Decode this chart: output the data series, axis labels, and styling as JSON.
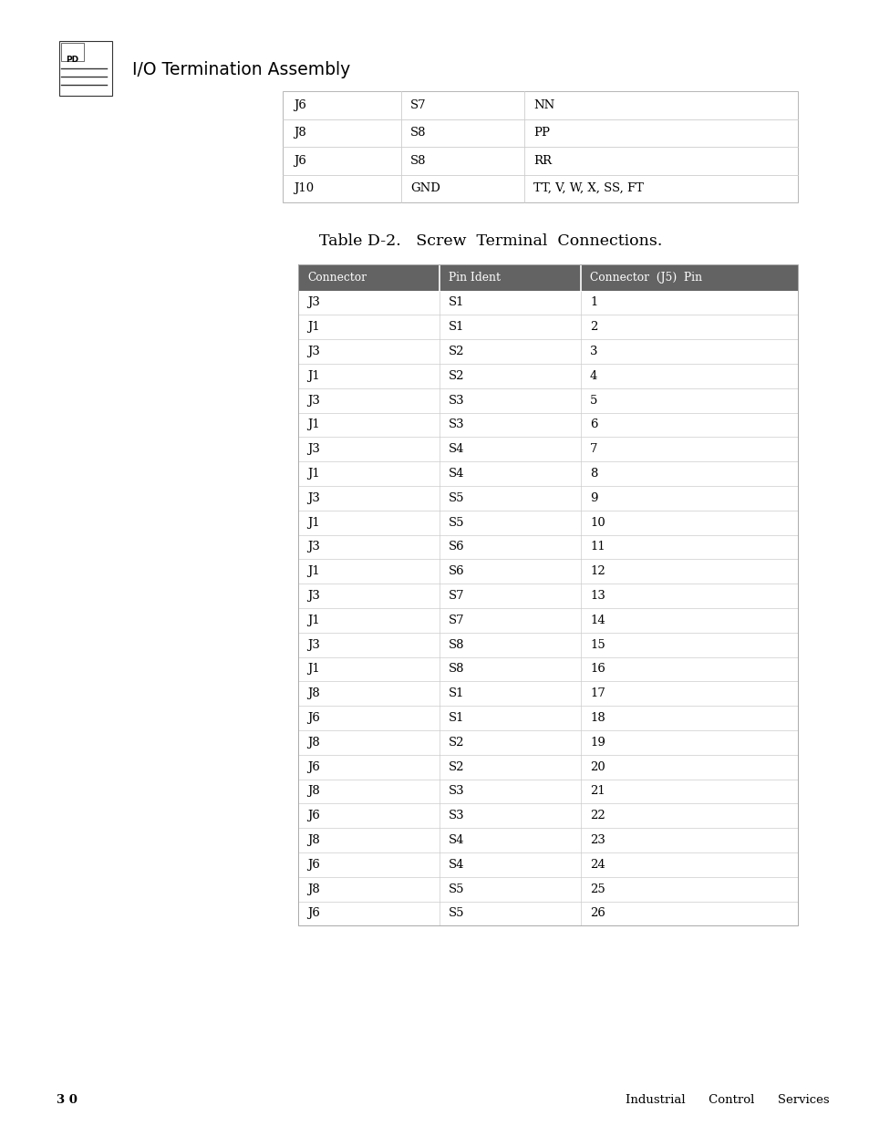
{
  "page_bg": "#ffffff",
  "header_title": "I/O Termination Assembly",
  "top_table_rows": [
    [
      "J6",
      "S7",
      "NN"
    ],
    [
      "J8",
      "S8",
      "PP"
    ],
    [
      "J6",
      "S8",
      "RR"
    ],
    [
      "J10",
      "GND",
      "TT, V, W, X, SS, FT"
    ]
  ],
  "table2_title": "Table D-2.   Screw  Terminal  Connections.",
  "table2_headers": [
    "Connector",
    "Pin Ident",
    "Connector  (J5)  Pin"
  ],
  "table2_rows": [
    [
      "J3",
      "S1",
      "1"
    ],
    [
      "J1",
      "S1",
      "2"
    ],
    [
      "J3",
      "S2",
      "3"
    ],
    [
      "J1",
      "S2",
      "4"
    ],
    [
      "J3",
      "S3",
      "5"
    ],
    [
      "J1",
      "S3",
      "6"
    ],
    [
      "J3",
      "S4",
      "7"
    ],
    [
      "J1",
      "S4",
      "8"
    ],
    [
      "J3",
      "S5",
      "9"
    ],
    [
      "J1",
      "S5",
      "10"
    ],
    [
      "J3",
      "S6",
      "11"
    ],
    [
      "J1",
      "S6",
      "12"
    ],
    [
      "J3",
      "S7",
      "13"
    ],
    [
      "J1",
      "S7",
      "14"
    ],
    [
      "J3",
      "S8",
      "15"
    ],
    [
      "J1",
      "S8",
      "16"
    ],
    [
      "J8",
      "S1",
      "17"
    ],
    [
      "J6",
      "S1",
      "18"
    ],
    [
      "J8",
      "S2",
      "19"
    ],
    [
      "J6",
      "S2",
      "20"
    ],
    [
      "J8",
      "S3",
      "21"
    ],
    [
      "J6",
      "S3",
      "22"
    ],
    [
      "J8",
      "S4",
      "23"
    ],
    [
      "J6",
      "S4",
      "24"
    ],
    [
      "J8",
      "S5",
      "25"
    ],
    [
      "J6",
      "S5",
      "26"
    ]
  ],
  "header_bg": "#636363",
  "header_fg": "#ffffff",
  "row_line_color": "#cccccc",
  "table_border_color": "#aaaaaa",
  "footer_left": "3 0",
  "footer_right": "Industrial      Control      Services",
  "font_size_body": 9.5,
  "font_size_header_row": 8.8,
  "font_size_page_title": 13.5,
  "font_size_table2_title": 12.5,
  "font_size_footer": 9.5
}
